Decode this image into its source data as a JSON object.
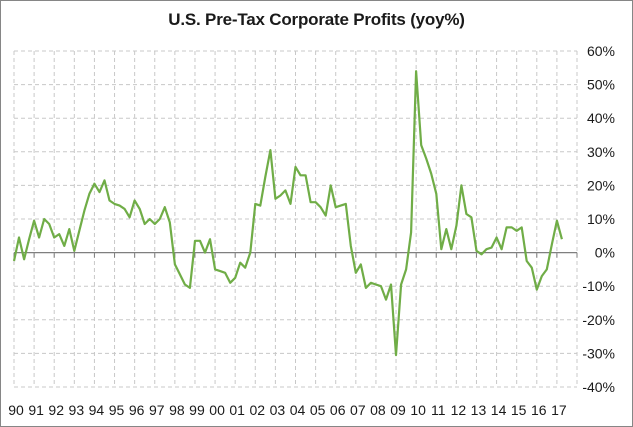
{
  "chart_data": {
    "type": "line",
    "title": "U.S. Pre-Tax Corporate Profits (yoy%)",
    "xlabel": "",
    "ylabel": "",
    "ylim": [
      -40,
      60
    ],
    "y_ticks": [
      60,
      50,
      40,
      30,
      20,
      10,
      0,
      -10,
      -20,
      -30,
      -40
    ],
    "y_tick_labels": [
      "60%",
      "50%",
      "40%",
      "30%",
      "20%",
      "10%",
      "0%",
      "-10%",
      "-20%",
      "-30%",
      "-40%"
    ],
    "x_tick_labels": [
      "90",
      "91",
      "92",
      "93",
      "94",
      "95",
      "96",
      "97",
      "98",
      "99",
      "00",
      "01",
      "02",
      "03",
      "04",
      "05",
      "06",
      "07",
      "08",
      "09",
      "10",
      "11",
      "12",
      "13",
      "14",
      "15",
      "16",
      "17"
    ],
    "y_axis_position": "right",
    "grid": true,
    "legend": "none",
    "frequency": "quarterly",
    "x_start": "1990 Q1",
    "series": [
      {
        "name": "U.S. Pre-Tax Corporate Profits (yoy%)",
        "color": "#70ad47",
        "values": [
          -2.5,
          4.5,
          -2.0,
          4.0,
          9.5,
          4.5,
          10.0,
          8.5,
          4.5,
          5.5,
          2.0,
          7.0,
          0.5,
          6.5,
          12.5,
          17.5,
          20.5,
          18.0,
          21.5,
          15.5,
          14.5,
          14.0,
          13.0,
          10.5,
          15.5,
          13.0,
          8.5,
          10.0,
          8.5,
          10.0,
          13.5,
          9.0,
          -3.5,
          -6.5,
          -9.5,
          -10.5,
          3.5,
          3.5,
          0.0,
          4.0,
          -5.0,
          -5.5,
          -6.0,
          -9.0,
          -7.5,
          -3.0,
          -4.5,
          0.0,
          14.5,
          14.0,
          22.5,
          30.5,
          16.0,
          17.0,
          18.5,
          14.5,
          25.5,
          23.0,
          23.0,
          15.0,
          15.0,
          13.5,
          11.0,
          20.0,
          13.5,
          14.0,
          14.5,
          2.0,
          -6.0,
          -3.5,
          -10.5,
          -9.0,
          -9.5,
          -10.0,
          -14.0,
          -9.5,
          -30.5,
          -9.5,
          -5.0,
          6.0,
          54.0,
          32.0,
          28.0,
          23.5,
          17.5,
          1.0,
          7.0,
          1.0,
          8.0,
          20.0,
          11.5,
          10.5,
          0.5,
          -0.5,
          1.0,
          1.5,
          4.5,
          1.0,
          7.5,
          7.5,
          6.5,
          7.5,
          -2.5,
          -4.5,
          -11.0,
          -7.0,
          -5.0,
          2.5,
          9.5,
          4.0
        ]
      }
    ]
  }
}
